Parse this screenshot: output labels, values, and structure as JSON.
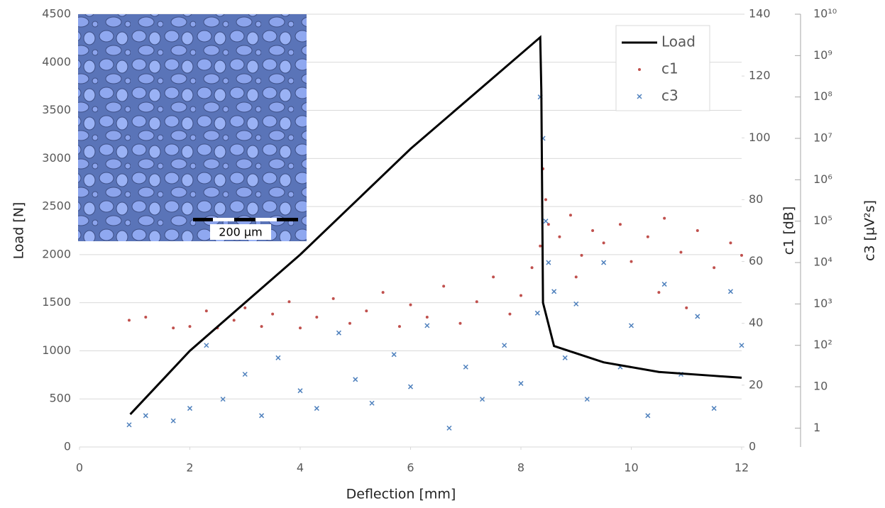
{
  "chart_data": {
    "type": "combo",
    "x_label": "Deflection [mm]",
    "y_label": "Load [N]",
    "y2_label": "c1 [dB]",
    "y3_label": "c3 [µV²s]",
    "inset_label": "200 µm",
    "xlim": [
      0,
      12
    ],
    "xticks": [
      0,
      2,
      4,
      6,
      8,
      10,
      12
    ],
    "ylim": [
      0,
      4500
    ],
    "yticks": [
      0,
      500,
      1000,
      1500,
      2000,
      2500,
      3000,
      3500,
      4000,
      4500
    ],
    "y2lim": [
      0,
      140
    ],
    "y2ticks": [
      0,
      20,
      40,
      60,
      80,
      100,
      120,
      140
    ],
    "y3lim": [
      0.35,
      10000000000
    ],
    "y3_log": true,
    "y3ticks": [
      1,
      10,
      {
        "value": 100,
        "label": "10²"
      },
      {
        "value": 1000,
        "label": "10³"
      },
      {
        "value": 10000,
        "label": "10⁴"
      },
      {
        "value": 100000,
        "label": "10⁵"
      },
      {
        "value": 1000000,
        "label": "10⁶"
      },
      {
        "value": 10000000,
        "label": "10⁷"
      },
      {
        "value": 100000000,
        "label": "10⁸"
      },
      {
        "value": 1000000000,
        "label": "10⁹"
      },
      {
        "value": 10000000000,
        "label": "10¹⁰"
      }
    ],
    "grid": true,
    "legend": "top-right",
    "series": [
      {
        "name": "c1",
        "type": "scatter",
        "marker": "dot",
        "color": "#c0504d",
        "axis": "y2",
        "x": [
          0.9,
          1.2,
          1.7,
          2.0,
          2.3,
          2.5,
          2.8,
          3.0,
          3.3,
          3.5,
          3.8,
          4.0,
          4.3,
          4.6,
          4.9,
          5.2,
          5.5,
          5.8,
          6.0,
          6.3,
          6.6,
          6.9,
          7.2,
          7.5,
          7.8,
          8.0,
          8.2,
          8.35,
          8.4,
          8.45,
          8.5,
          8.7,
          8.9,
          9.1,
          9.3,
          9.5,
          9.8,
          10.0,
          10.3,
          10.6,
          10.9,
          11.2,
          11.5,
          11.8,
          12.0,
          9.0,
          10.5,
          11.0
        ],
        "values": [
          41,
          42,
          38.5,
          39,
          44,
          38.5,
          41,
          45,
          39,
          43,
          47,
          38.5,
          42,
          48,
          40,
          44,
          50,
          39,
          46,
          42,
          52,
          40,
          47,
          55,
          43,
          49,
          58,
          65,
          90,
          80,
          72,
          68,
          75,
          62,
          70,
          66,
          72,
          60,
          68,
          74,
          63,
          70,
          58,
          66,
          62,
          55,
          50,
          45
        ]
      },
      {
        "name": "c3",
        "type": "scatter",
        "marker": "x",
        "color": "#4f81bd",
        "axis": "y3",
        "x": [
          0.9,
          1.2,
          1.7,
          2.0,
          2.3,
          2.6,
          3.0,
          3.3,
          3.6,
          4.0,
          4.3,
          4.7,
          5.0,
          5.3,
          5.7,
          6.0,
          6.3,
          6.7,
          7.0,
          7.3,
          7.7,
          8.0,
          8.3,
          8.35,
          8.4,
          8.45,
          8.5,
          8.6,
          8.8,
          9.0,
          9.2,
          9.5,
          9.8,
          10.0,
          10.3,
          10.6,
          10.9,
          11.2,
          11.5,
          11.8,
          12.0
        ],
        "values": [
          1.2,
          2,
          1.5,
          3,
          100,
          5,
          20,
          2,
          50,
          8,
          3,
          200,
          15,
          4,
          60,
          10,
          300,
          1,
          30,
          5,
          100,
          12,
          600,
          100000000,
          10000000,
          100000,
          10000,
          2000,
          50,
          1000,
          5,
          10000,
          30,
          300,
          2,
          3000,
          20,
          500,
          3,
          2000,
          100
        ]
      },
      {
        "name": "Load",
        "type": "line",
        "color": "#000000",
        "axis": "y",
        "x": [
          0.92,
          2,
          4,
          6,
          8.35,
          8.37,
          8.4,
          8.6,
          9.5,
          10.5,
          11.5,
          12
        ],
        "values": [
          340,
          1000,
          2000,
          3100,
          4260,
          3700,
          1500,
          1050,
          880,
          780,
          740,
          720
        ]
      }
    ]
  }
}
